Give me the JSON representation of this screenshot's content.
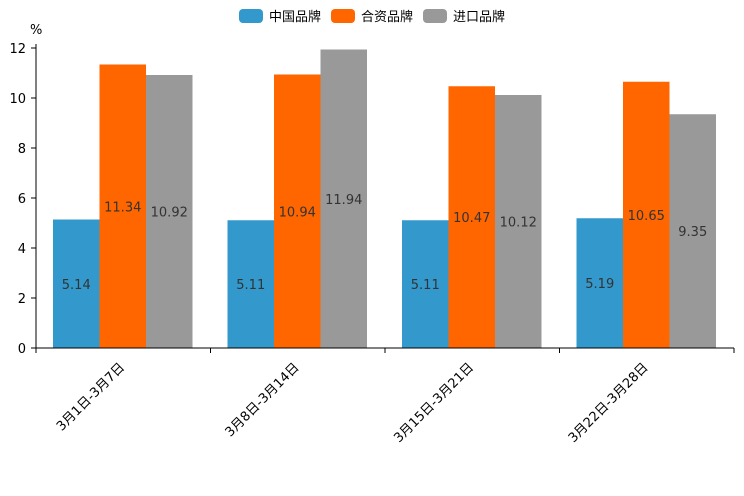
{
  "chart_data": {
    "type": "bar",
    "title": "",
    "xlabel": "",
    "ylabel": "%",
    "ylim": [
      0,
      12
    ],
    "yticks": [
      0,
      2,
      4,
      6,
      8,
      10,
      12
    ],
    "grid": false,
    "legend_position": "top-center",
    "categories": [
      "3月1日-3月7日",
      "3月8日-3月14日",
      "3月15日-3月21日",
      "3月22日-3月28日"
    ],
    "series": [
      {
        "name": "中国品牌",
        "color": "#3399cc",
        "values": [
          5.14,
          5.11,
          5.11,
          5.19
        ],
        "labels": [
          "5.14",
          "5.11",
          "5.11",
          "5.19"
        ]
      },
      {
        "name": "合资品牌",
        "color": "#ff6600",
        "values": [
          11.34,
          10.94,
          10.47,
          10.65
        ],
        "labels": [
          "11.34",
          "10.94",
          "10.47",
          "10.65"
        ]
      },
      {
        "name": "进口品牌",
        "color": "#999999",
        "values": [
          10.92,
          11.94,
          10.12,
          9.35
        ],
        "labels": [
          "10.92",
          "11.94",
          "10.12",
          "9.35"
        ]
      }
    ]
  }
}
